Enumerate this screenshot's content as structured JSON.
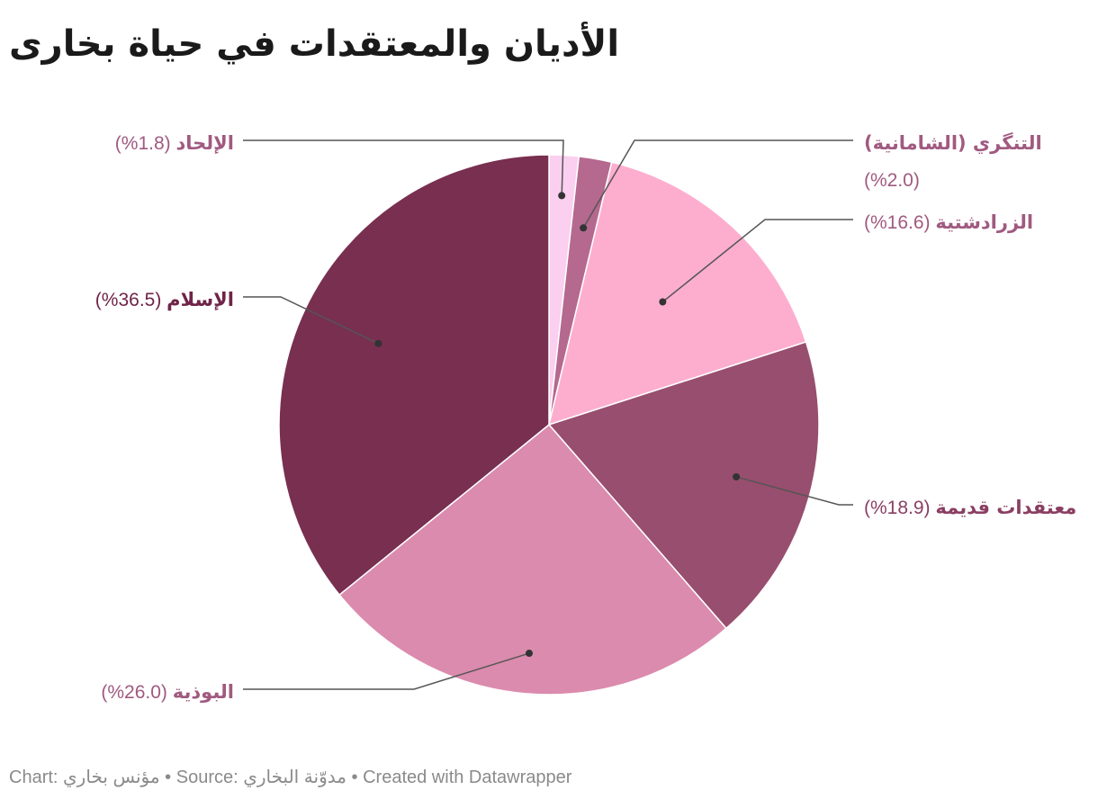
{
  "title": "الأديان والمعتقدات في حياة بخارى",
  "footer": {
    "chart_prefix": "Chart:",
    "chart_author": "مؤنس بخاري",
    "sep1": "•",
    "source_prefix": "Source:",
    "source_name": "مدوّنة البخاري",
    "sep2": "•",
    "created": "Created with Datawrapper"
  },
  "chart_data": {
    "type": "pie",
    "unit": "%",
    "slices": [
      {
        "label": "الإلحاد",
        "value_text": "(%1.8)",
        "value": 1.8,
        "color": "#fbcfef"
      },
      {
        "label": "التنگري (الشامانية)",
        "value_text": "(%2.0)",
        "value": 2.0,
        "color": "#b5698f"
      },
      {
        "label": "الزرادشتية",
        "value_text": "(%16.6)",
        "value": 16.6,
        "color": "#fdaecf"
      },
      {
        "label": "معتقدات قديمة",
        "value_text": "(%18.9)",
        "value": 18.9,
        "color": "#984e6e"
      },
      {
        "label": "البوذية",
        "value_text": "(%26.0)",
        "value": 26.0,
        "color": "#db8bad"
      },
      {
        "label": "الإسلام",
        "value_text": "(%36.5)",
        "value": 36.5,
        "color": "#782f50"
      }
    ],
    "label_colors": {
      "الإلحاد": "#a05a80",
      "التنگري (الشامانية)": "#a05a80",
      "الزرادشتية": "#a05a80",
      "معتقدات قديمة": "#8a3f62",
      "البوذية": "#a05a80",
      "الإسلام": "#6f2448"
    }
  }
}
